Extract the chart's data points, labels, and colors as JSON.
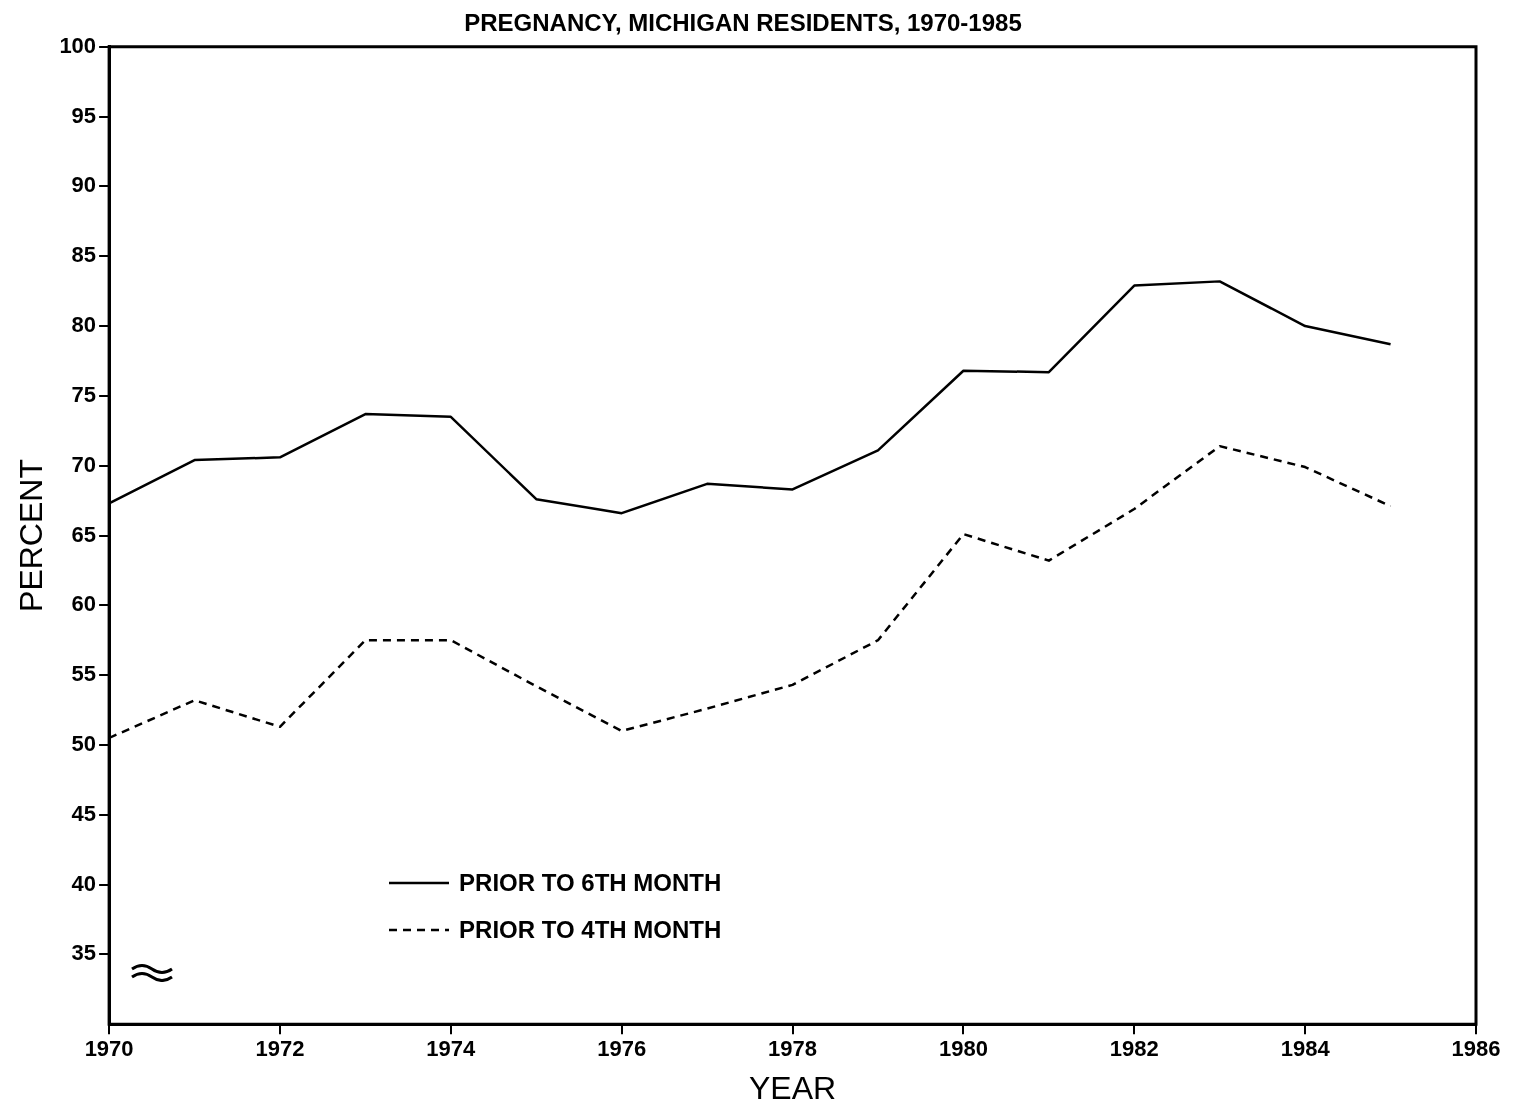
{
  "chart_data": {
    "type": "line",
    "title": "PREGNANCY, MICHIGAN RESIDENTS, 1970-1985",
    "xlabel": "YEAR",
    "ylabel": "PERCENT",
    "x": [
      1970,
      1971,
      1972,
      1973,
      1974,
      1975,
      1976,
      1977,
      1978,
      1979,
      1980,
      1981,
      1982,
      1983,
      1984,
      1985
    ],
    "series": [
      {
        "name": "PRIOR TO 6TH MONTH",
        "color": "#000000",
        "line_style": "solid",
        "values": [
          67.3,
          70.4,
          70.6,
          73.7,
          73.5,
          67.6,
          66.6,
          68.7,
          68.3,
          71.1,
          76.8,
          76.7,
          82.9,
          83.2,
          80.0,
          78.7
        ]
      },
      {
        "name": "PRIOR TO 4TH MONTH",
        "color": "#000000",
        "line_style": "dashed",
        "values": [
          50.5,
          53.2,
          51.3,
          57.5,
          57.5,
          54.2,
          51.0,
          52.6,
          54.3,
          57.5,
          65.1,
          63.2,
          66.9,
          71.4,
          69.9,
          67.1
        ]
      }
    ],
    "xlim": [
      1970,
      1986
    ],
    "xticks": [
      1970,
      1972,
      1974,
      1976,
      1978,
      1980,
      1982,
      1984,
      1986
    ],
    "ylim": [
      30,
      100
    ],
    "yticks": [
      35,
      40,
      45,
      50,
      55,
      60,
      65,
      70,
      75,
      80,
      85,
      90,
      95,
      100
    ],
    "grid": false,
    "legend": "bottom left",
    "marker": "none"
  }
}
